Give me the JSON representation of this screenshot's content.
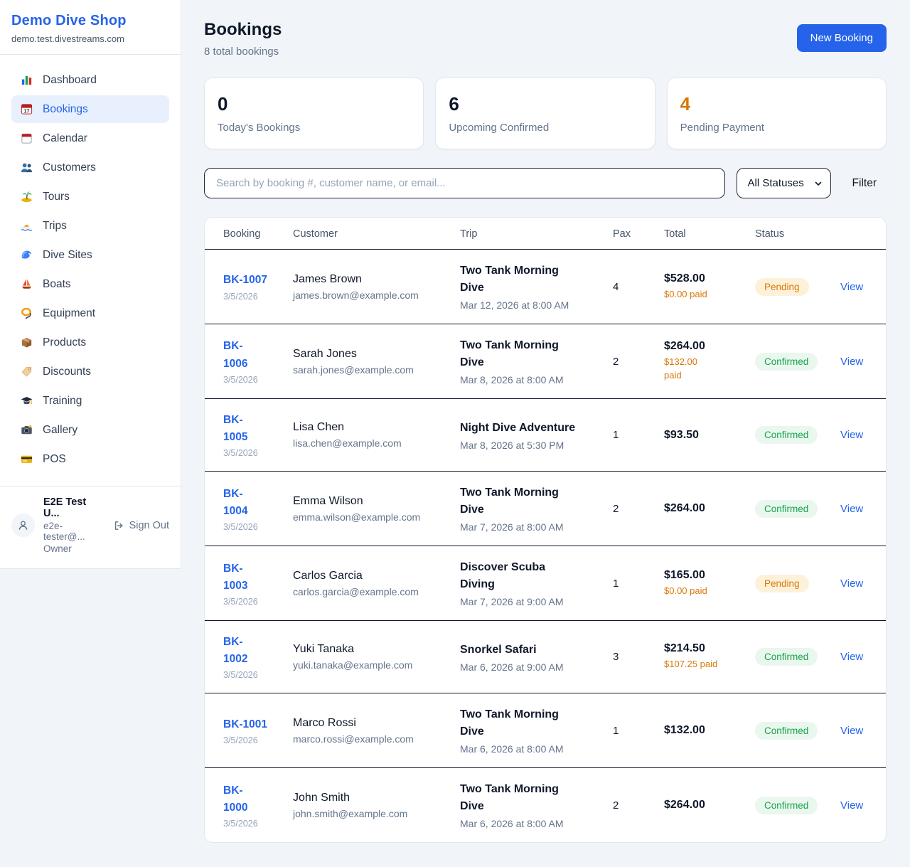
{
  "sidebar": {
    "brand": {
      "name": "Demo Dive Shop",
      "domain": "demo.test.divestreams.com"
    },
    "items": [
      {
        "id": "dashboard",
        "label": "Dashboard",
        "icon": "bar-chart",
        "active": false
      },
      {
        "id": "bookings",
        "label": "Bookings",
        "icon": "calendar-17",
        "active": true
      },
      {
        "id": "calendar",
        "label": "Calendar",
        "icon": "calendar-pad",
        "active": false
      },
      {
        "id": "customers",
        "label": "Customers",
        "icon": "people",
        "active": false
      },
      {
        "id": "tours",
        "label": "Tours",
        "icon": "island",
        "active": false
      },
      {
        "id": "trips",
        "label": "Trips",
        "icon": "speedboat",
        "active": false
      },
      {
        "id": "dive-sites",
        "label": "Dive Sites",
        "icon": "wave",
        "active": false
      },
      {
        "id": "boats",
        "label": "Boats",
        "icon": "sailboat",
        "active": false
      },
      {
        "id": "equipment",
        "label": "Equipment",
        "icon": "diving-mask",
        "active": false
      },
      {
        "id": "products",
        "label": "Products",
        "icon": "package",
        "active": false
      },
      {
        "id": "discounts",
        "label": "Discounts",
        "icon": "tag",
        "active": false
      },
      {
        "id": "training",
        "label": "Training",
        "icon": "graduation-cap",
        "active": false
      },
      {
        "id": "gallery",
        "label": "Gallery",
        "icon": "camera",
        "active": false
      },
      {
        "id": "pos",
        "label": "POS",
        "icon": "credit-card",
        "active": false
      }
    ],
    "user": {
      "name": "E2E Test U...",
      "email": "e2e-tester@...",
      "role": "Owner",
      "sign_out_label": "Sign Out"
    }
  },
  "header": {
    "title": "Bookings",
    "subtitle": "8 total bookings",
    "new_booking_label": "New Booking"
  },
  "stats": [
    {
      "value": "0",
      "label": "Today's Bookings",
      "color": "#0f172a"
    },
    {
      "value": "6",
      "label": "Upcoming Confirmed",
      "color": "#0f172a"
    },
    {
      "value": "4",
      "label": "Pending Payment",
      "color": "#d97706"
    }
  ],
  "filters": {
    "search_placeholder": "Search by booking #, customer name, or email...",
    "status_selected": "All Statuses",
    "filter_label": "Filter"
  },
  "table": {
    "headers": [
      "Booking",
      "Customer",
      "Trip",
      "Pax",
      "Total",
      "Status",
      ""
    ],
    "view_label": "View",
    "status_styles": {
      "Pending": {
        "bg": "#fdf2d9",
        "fg": "#d97706"
      },
      "Confirmed": {
        "bg": "#e9f7ee",
        "fg": "#16a34a"
      }
    },
    "rows": [
      {
        "booking_id": "BK-1007",
        "booking_date": "3/5/2026",
        "customer": "James Brown",
        "email": "james.brown@example.com",
        "trip": "Two Tank Morning Dive",
        "trip_time": "Mar 12, 2026 at 8:00 AM",
        "pax": "4",
        "total": "$528.00",
        "paid": "$0.00 paid",
        "status": "Pending"
      },
      {
        "booking_id": "BK-\n1006",
        "booking_date": "3/5/2026",
        "customer": "Sarah Jones",
        "email": "sarah.jones@example.com",
        "trip": "Two Tank Morning Dive",
        "trip_time": "Mar 8, 2026 at 8:00 AM",
        "pax": "2",
        "total": "$264.00",
        "paid": "$132.00\npaid",
        "status": "Confirmed"
      },
      {
        "booking_id": "BK-\n1005",
        "booking_date": "3/5/2026",
        "customer": "Lisa Chen",
        "email": "lisa.chen@example.com",
        "trip": "Night Dive Adventure",
        "trip_time": "Mar 8, 2026 at 5:30 PM",
        "pax": "1",
        "total": "$93.50",
        "paid": "",
        "status": "Confirmed"
      },
      {
        "booking_id": "BK-\n1004",
        "booking_date": "3/5/2026",
        "customer": "Emma Wilson",
        "email": "emma.wilson@example.com",
        "trip": "Two Tank Morning Dive",
        "trip_time": "Mar 7, 2026 at 8:00 AM",
        "pax": "2",
        "total": "$264.00",
        "paid": "",
        "status": "Confirmed"
      },
      {
        "booking_id": "BK-\n1003",
        "booking_date": "3/5/2026",
        "customer": "Carlos Garcia",
        "email": "carlos.garcia@example.com",
        "trip": "Discover Scuba Diving",
        "trip_time": "Mar 7, 2026 at 9:00 AM",
        "pax": "1",
        "total": "$165.00",
        "paid": "$0.00 paid",
        "status": "Pending"
      },
      {
        "booking_id": "BK-\n1002",
        "booking_date": "3/5/2026",
        "customer": "Yuki Tanaka",
        "email": "yuki.tanaka@example.com",
        "trip": "Snorkel Safari",
        "trip_time": "Mar 6, 2026 at 9:00 AM",
        "pax": "3",
        "total": "$214.50",
        "paid": "$107.25 paid",
        "status": "Confirmed"
      },
      {
        "booking_id": "BK-1001",
        "booking_date": "3/5/2026",
        "customer": "Marco Rossi",
        "email": "marco.rossi@example.com",
        "trip": "Two Tank Morning Dive",
        "trip_time": "Mar 6, 2026 at 8:00 AM",
        "pax": "1",
        "total": "$132.00",
        "paid": "",
        "status": "Confirmed"
      },
      {
        "booking_id": "BK-\n1000",
        "booking_date": "3/5/2026",
        "customer": "John Smith",
        "email": "john.smith@example.com",
        "trip": "Two Tank Morning Dive",
        "trip_time": "Mar 6, 2026 at 8:00 AM",
        "pax": "2",
        "total": "$264.00",
        "paid": "",
        "status": "Confirmed"
      }
    ]
  },
  "colors": {
    "accent": "#2563eb",
    "pending": "#d97706",
    "confirmed": "#16a34a",
    "page_bg": "#f1f5f9"
  }
}
